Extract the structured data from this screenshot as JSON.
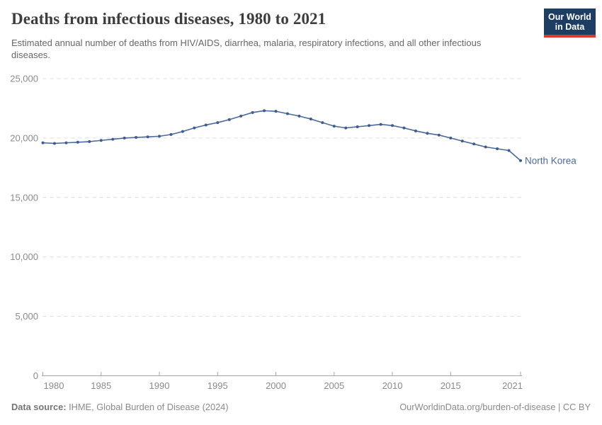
{
  "header": {
    "title": "Deaths from infectious diseases, 1980 to 2021",
    "subtitle": "Estimated annual number of deaths from HIV/AIDS, diarrhea, malaria, respiratory infections, and all other infectious diseases.",
    "logo": {
      "line1": "Our World",
      "line2": "in Data",
      "bg_color": "#1d3d63",
      "bar_color": "#dc3a28"
    }
  },
  "chart_data": {
    "type": "line",
    "title": "Deaths from infectious diseases, 1980 to 2021",
    "xlabel": "",
    "ylabel": "",
    "xlim": [
      1980,
      2021
    ],
    "ylim": [
      0,
      25000
    ],
    "grid": "horizontal-dashed",
    "legend_position": "end-of-line-label",
    "x_ticks": [
      1980,
      1985,
      1990,
      1995,
      2000,
      2005,
      2010,
      2015,
      2021
    ],
    "y_ticks": [
      0,
      5000,
      10000,
      15000,
      20000,
      25000
    ],
    "y_tick_labels": [
      "0",
      "5,000",
      "10,000",
      "15,000",
      "20,000",
      "25,000"
    ],
    "series": [
      {
        "name": "North Korea",
        "color": "#4c6a9c",
        "point_color": "#3d5c91",
        "x": [
          1980,
          1981,
          1982,
          1983,
          1984,
          1985,
          1986,
          1987,
          1988,
          1989,
          1990,
          1991,
          1992,
          1993,
          1994,
          1995,
          1996,
          1997,
          1998,
          1999,
          2000,
          2001,
          2002,
          2003,
          2004,
          2005,
          2006,
          2007,
          2008,
          2009,
          2010,
          2011,
          2012,
          2013,
          2014,
          2015,
          2016,
          2017,
          2018,
          2019,
          2020,
          2021
        ],
        "values": [
          19600,
          19550,
          19600,
          19650,
          19700,
          19800,
          19900,
          20000,
          20050,
          20100,
          20150,
          20300,
          20550,
          20850,
          21100,
          21300,
          21550,
          21850,
          22150,
          22300,
          22250,
          22050,
          21850,
          21600,
          21300,
          21000,
          20850,
          20950,
          21050,
          21150,
          21050,
          20850,
          20600,
          20400,
          20250,
          20000,
          19750,
          19500,
          19250,
          19100,
          18950,
          18100
        ]
      }
    ],
    "colors": {
      "gridline": "#dcdcdc",
      "axis": "#a6a6a6",
      "tick_label": "#8a8a8a"
    }
  },
  "footer": {
    "datasource_label": "Data source:",
    "datasource_value": " IHME, Global Burden of Disease (2024)",
    "credit": "OurWorldinData.org/burden-of-disease | CC BY"
  }
}
